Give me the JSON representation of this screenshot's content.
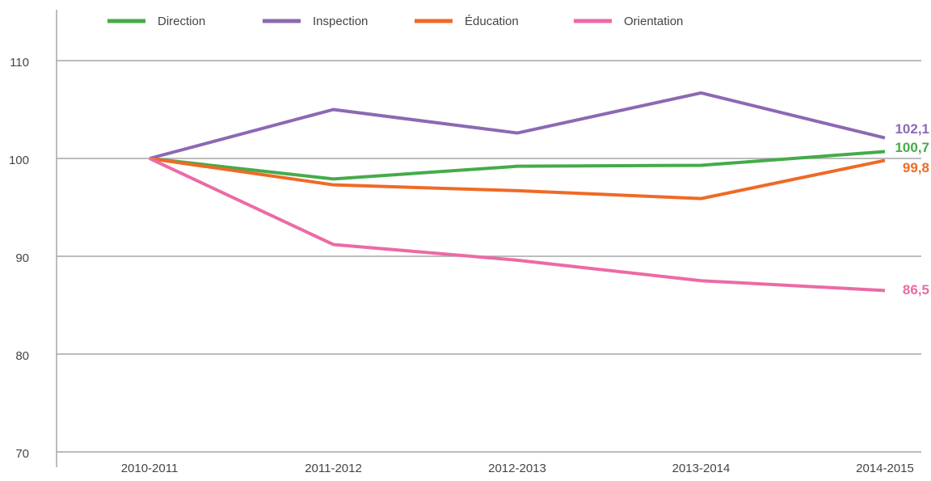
{
  "chart_data": {
    "type": "line",
    "categories": [
      "2010-2011",
      "2011-2012",
      "2012-2013",
      "2013-2014",
      "2014-2015"
    ],
    "series": [
      {
        "name": "Direction",
        "color": "#45ab4a",
        "values": [
          100,
          97.9,
          99.2,
          99.3,
          100.7
        ],
        "value_labels": [
          null,
          null,
          null,
          null,
          "100,7"
        ]
      },
      {
        "name": "Inspection",
        "color": "#8c69b3",
        "values": [
          100,
          105.0,
          102.6,
          106.7,
          102.1
        ],
        "value_labels": [
          null,
          null,
          null,
          null,
          "102,1"
        ]
      },
      {
        "name": "Éducation",
        "color": "#ef6a25",
        "values": [
          100,
          97.3,
          96.7,
          95.9,
          99.8
        ],
        "value_labels": [
          null,
          null,
          null,
          null,
          "99,8"
        ]
      },
      {
        "name": "Orientation",
        "color": "#ec6aa6",
        "values": [
          100,
          91.2,
          89.6,
          87.5,
          86.5
        ],
        "value_labels": [
          null,
          null,
          null,
          null,
          "86,5"
        ]
      }
    ],
    "ylim": [
      70,
      115
    ],
    "yticks": [
      70,
      80,
      90,
      100,
      110
    ],
    "grid": true,
    "legend": "top"
  }
}
